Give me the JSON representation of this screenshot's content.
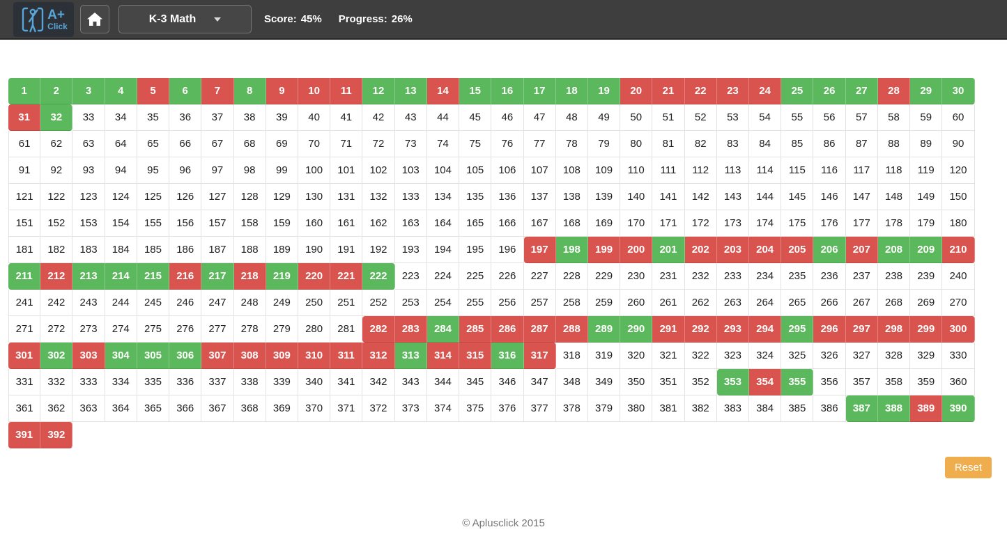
{
  "header": {
    "logo": {
      "text_top": "A+",
      "text_bottom": "Click",
      "brand_color": "#58a6d9"
    },
    "category_dropdown": {
      "label": "K-3 Math"
    },
    "score": {
      "label": "Score:",
      "value": "45%"
    },
    "progress": {
      "label": "Progress:",
      "value": "26%"
    }
  },
  "grid": {
    "columns": 30,
    "start_number": 1,
    "total_cells": 392,
    "colors": {
      "green": "#5cb85c",
      "red": "#d9534f",
      "white": "#ffffff"
    },
    "states_legend": {
      "G": "green",
      "R": "red",
      "W": "white"
    },
    "rows": [
      "GGGGRGRGRRRGGRGGGGGRRRRRGGGRGG",
      "RGWWWWWWWWWWWWWWWWWWWWWWWWWWWW",
      "WWWWWWWWWWWWWWWWWWWWWWWWWWWWWW",
      "WWWWWWWWWWWWWWWWWWWWWWWWWWWWWW",
      "WWWWWWWWWWWWWWWWWWWWWWWWWWWWWW",
      "WWWWWWWWWWWWWWWWWWWWWWWWWWWWWW",
      "WWWWWWWWWWWWWWWWRGRRGRRRRGRGGR",
      "GRGGGRGRGRRGWWWWWWWWWWWWWWWWWW",
      "WWWWWWWWWWWWWWWWWWWWWWWWWWWWWW",
      "WWWWWWWWWWWRRGRRRRGGRRRRGRRRRR",
      "RGRGGGRRRRRRGRRGRWWWWWWWWWWWWW",
      "WWWWWWWWWWWWWWWWWWWWWWGRGWWWWW",
      "WWWWWWWWWWWWWWWWWWWWWWWWWWGGRG",
      "RR"
    ]
  },
  "reset_button": {
    "label": "Reset",
    "color": "#f0ad4e"
  },
  "footer": {
    "copyright": "© Aplusclick 2015"
  }
}
